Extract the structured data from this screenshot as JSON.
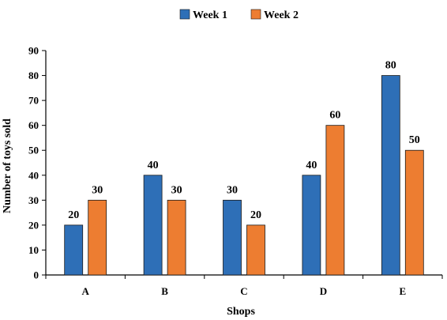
{
  "chart_data": {
    "type": "bar",
    "title": "",
    "xlabel": "Shops",
    "ylabel": "Number of toys sold",
    "categories": [
      "A",
      "B",
      "C",
      "D",
      "E"
    ],
    "series": [
      {
        "name": "Week 1",
        "color": "#2E6FB7",
        "values": [
          20,
          40,
          30,
          40,
          80
        ]
      },
      {
        "name": "Week 2",
        "color": "#ED7D31",
        "values": [
          30,
          30,
          20,
          60,
          50
        ]
      }
    ],
    "ylim": [
      0,
      90
    ],
    "yticks": [
      0,
      10,
      20,
      30,
      40,
      50,
      60,
      70,
      80,
      90
    ],
    "legend": "top-center",
    "grid": false,
    "data_labels": true
  }
}
